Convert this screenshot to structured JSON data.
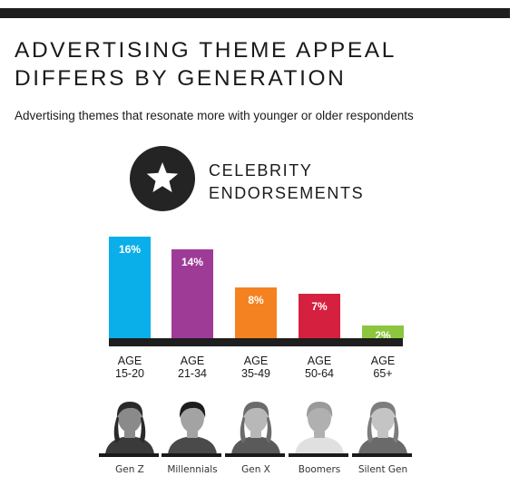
{
  "title": "ADVERTISING THEME APPEAL DIFFERS BY GENERATION",
  "subtitle": "Advertising themes that resonate more with younger or older respondents",
  "theme": {
    "line1": "CELEBRITY",
    "line2": "ENDORSEMENTS",
    "icon": "star-icon"
  },
  "groups": [
    {
      "age_word": "AGE",
      "age_range": "15-20",
      "generation": "Gen Z"
    },
    {
      "age_word": "AGE",
      "age_range": "21-34",
      "generation": "Millennials"
    },
    {
      "age_word": "AGE",
      "age_range": "35-49",
      "generation": "Gen X"
    },
    {
      "age_word": "AGE",
      "age_range": "50-64",
      "generation": "Boomers"
    },
    {
      "age_word": "AGE",
      "age_range": "65+",
      "generation": "Silent Gen"
    }
  ],
  "chart_data": {
    "type": "bar",
    "title": "CELEBRITY ENDORSEMENTS",
    "categories": [
      "AGE 15-20",
      "AGE 21-34",
      "AGE 35-49",
      "AGE 50-64",
      "AGE 65+"
    ],
    "values": [
      16,
      14,
      8,
      7,
      2
    ],
    "value_labels": [
      "16%",
      "14%",
      "8%",
      "7%",
      "2%"
    ],
    "colors": [
      "#0aaee8",
      "#9e3b97",
      "#f58220",
      "#d6203f",
      "#8cc63f"
    ],
    "ylim": [
      0,
      16
    ],
    "grid": false,
    "legend": "none"
  }
}
